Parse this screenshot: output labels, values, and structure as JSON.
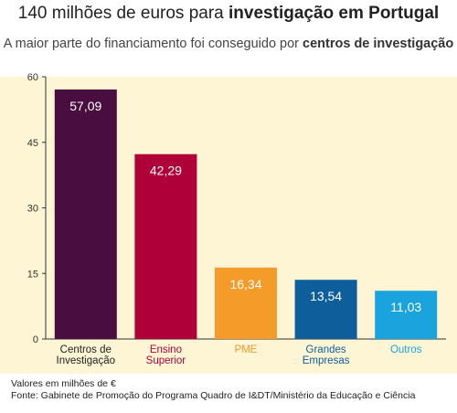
{
  "header": {
    "title_prefix": "140 milhões de euros para ",
    "title_bold": "investigação em Portugal",
    "subtitle_prefix": "A maior parte do financiamento foi conseguido por ",
    "subtitle_bold": "centros de investigação"
  },
  "chart_data": {
    "type": "bar",
    "categories": [
      [
        "Centros de",
        "Investigação"
      ],
      [
        "Ensino",
        "Superior"
      ],
      [
        "PME"
      ],
      [
        "Grandes",
        "Empresas"
      ],
      [
        "Outros"
      ]
    ],
    "values": [
      57.09,
      42.29,
      16.34,
      13.54,
      11.03
    ],
    "value_labels": [
      "57,09",
      "42,29",
      "16,34",
      "13,54",
      "11,03"
    ],
    "bar_colors": [
      "#4a0d3f",
      "#b0003a",
      "#f59b2a",
      "#0f5e9c",
      "#1aa3dd"
    ],
    "label_colors": [
      "#222222",
      "#b0003a",
      "#f59b2a",
      "#0f5e9c",
      "#1aa3dd"
    ],
    "ylim": [
      0,
      60
    ],
    "yticks": [
      0,
      15,
      30,
      45,
      60
    ],
    "grid": false,
    "background_color": "#fdf5d3"
  },
  "footnotes": {
    "units": "Valores em milhões de €",
    "source": "Fonte: Gabinete de Promoção do Programa Quadro de I&DT/Ministério da Educação e Ciência"
  }
}
